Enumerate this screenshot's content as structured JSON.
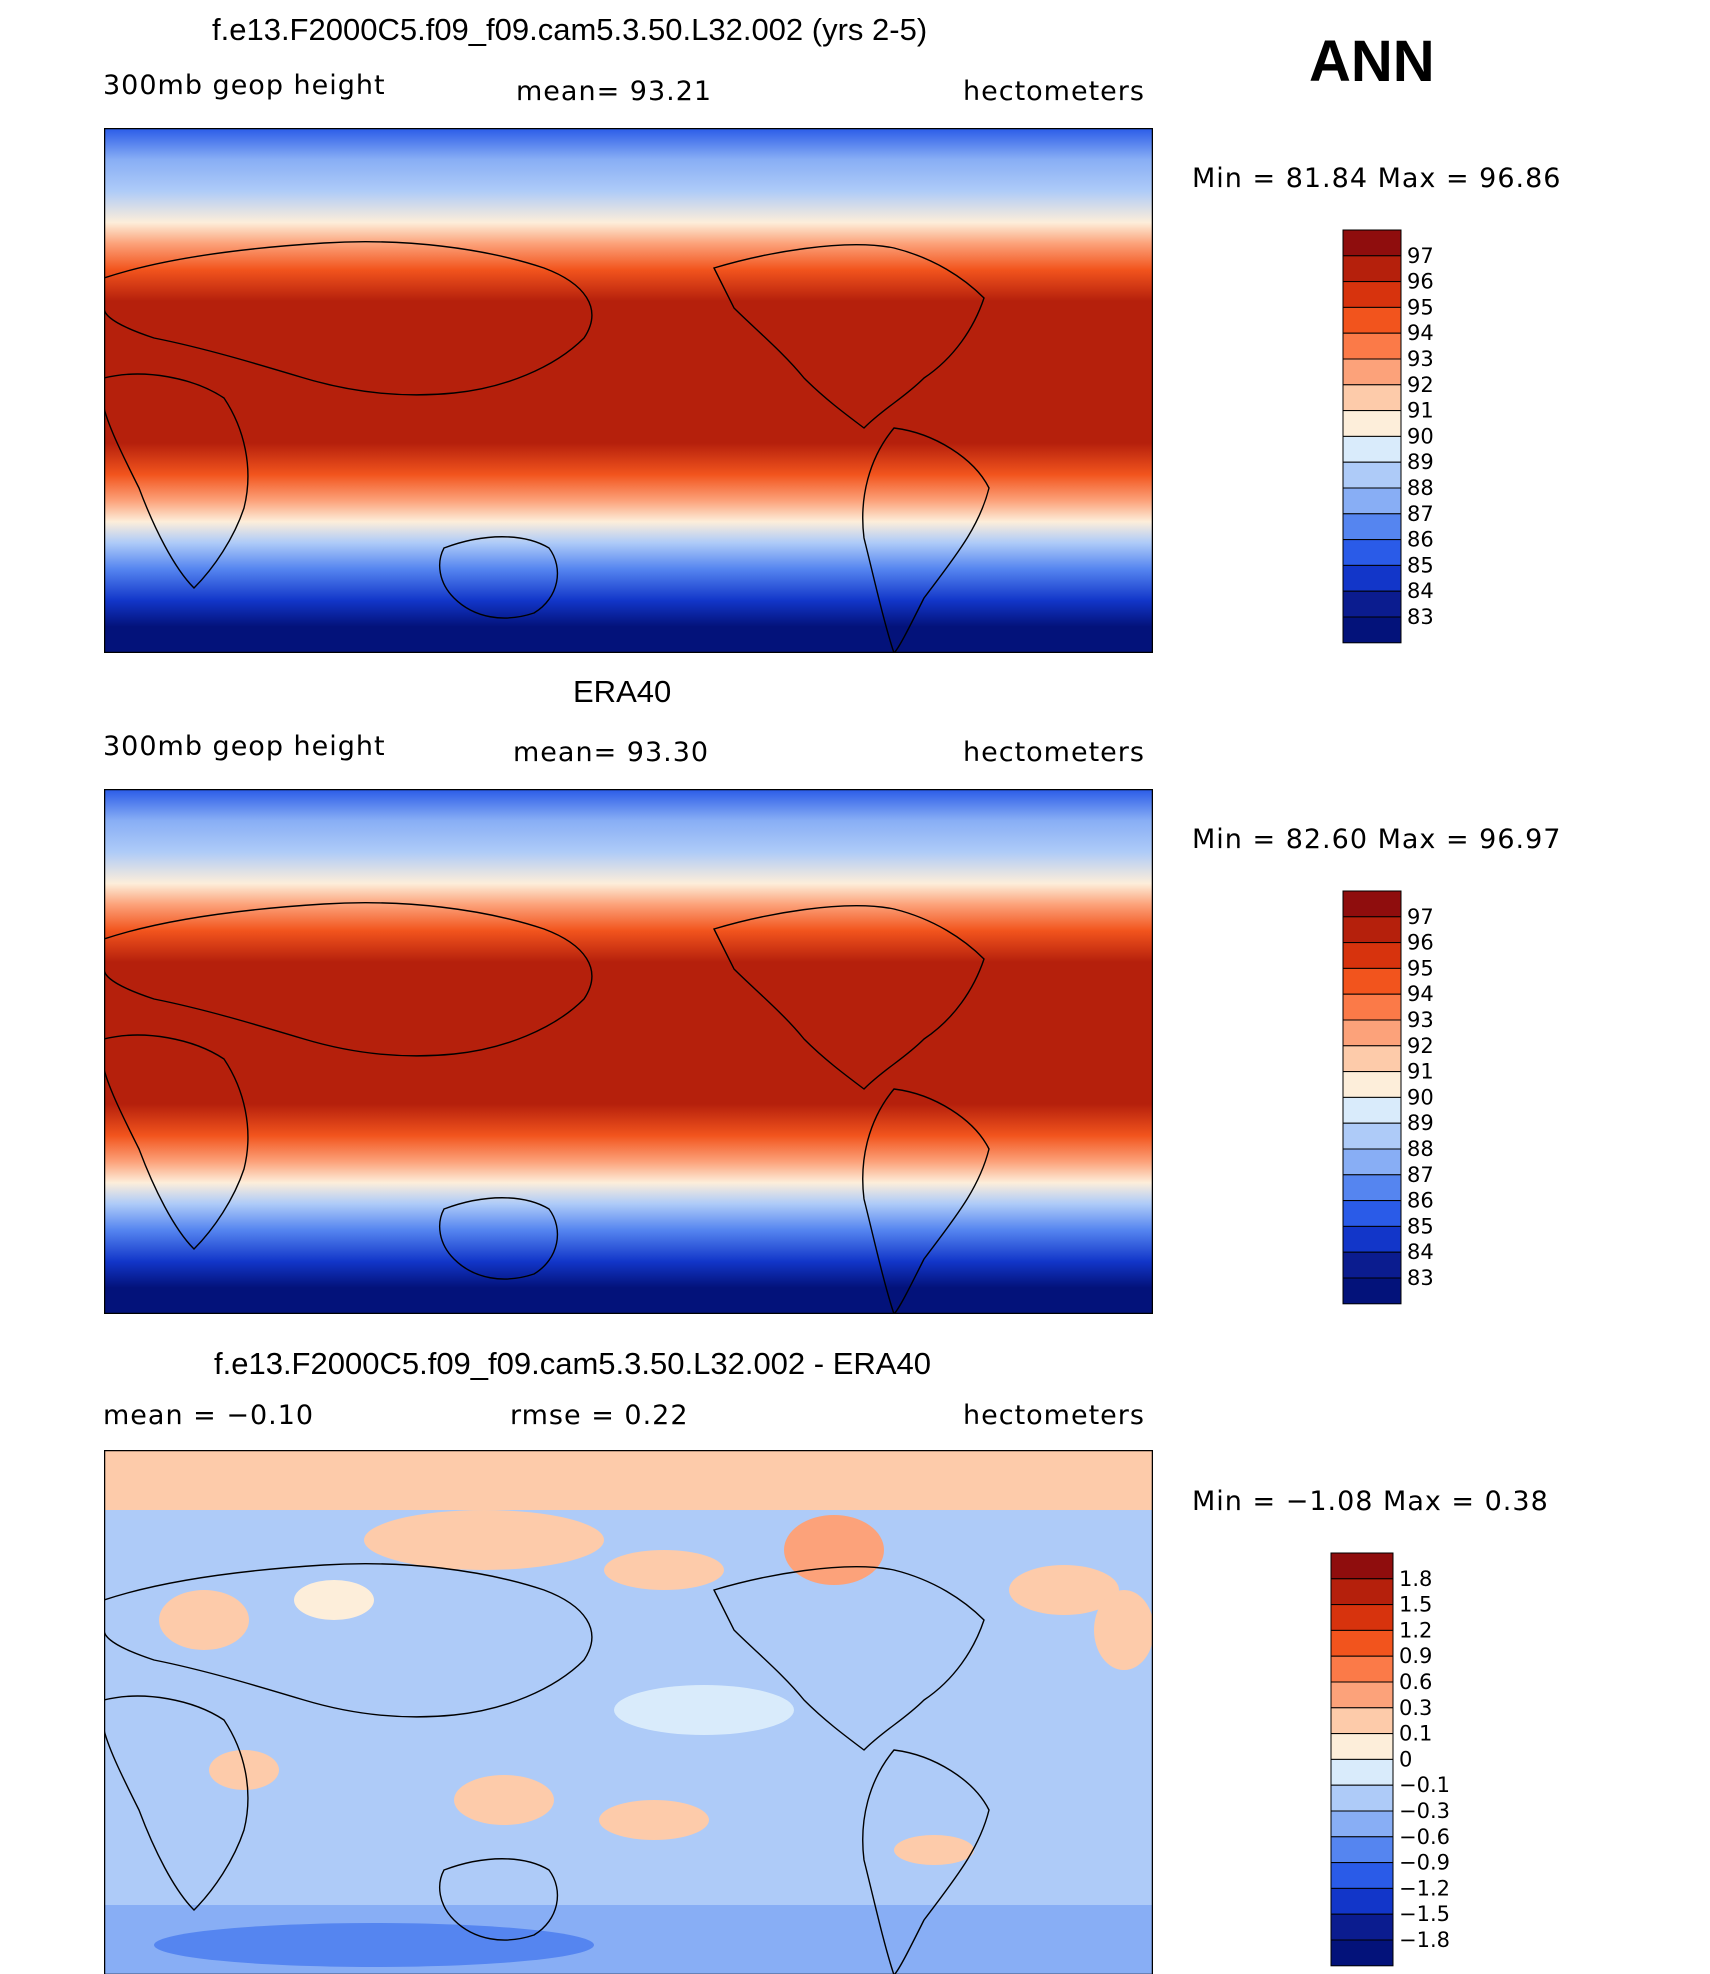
{
  "season": "ANN",
  "panels": [
    {
      "title": "f.e13.F2000C5.f09_f09.cam5.3.50.L32.002 (yrs 2-5)",
      "left_label": "300mb  geop  height",
      "center_label": "mean=   93.21",
      "units": "hectometers",
      "minmax": "Min  =    81.84  Max  =    96.86",
      "colorbar": {
        "labels": [
          "97",
          "96",
          "95",
          "94",
          "93",
          "92",
          "91",
          "90",
          "89",
          "88",
          "87",
          "86",
          "85",
          "84",
          "83"
        ],
        "colors": [
          "#8f0d0d",
          "#b5200c",
          "#d7330d",
          "#f2541d",
          "#fb7a48",
          "#fca27a",
          "#fdcbaa",
          "#fdeeda",
          "#d9ebfb",
          "#aecbf8",
          "#88aef5",
          "#5585f0",
          "#2a5be8",
          "#1236c9",
          "#0b1c8f",
          "#03127a"
        ]
      }
    },
    {
      "title": "ERA40",
      "left_label": "300mb  geop  height",
      "center_label": "mean=   93.30",
      "units": "hectometers",
      "minmax": "Min  =    82.60  Max  =    96.97",
      "colorbar": {
        "labels": [
          "97",
          "96",
          "95",
          "94",
          "93",
          "92",
          "91",
          "90",
          "89",
          "88",
          "87",
          "86",
          "85",
          "84",
          "83"
        ],
        "colors": [
          "#8f0d0d",
          "#b5200c",
          "#d7330d",
          "#f2541d",
          "#fb7a48",
          "#fca27a",
          "#fdcbaa",
          "#fdeeda",
          "#d9ebfb",
          "#aecbf8",
          "#88aef5",
          "#5585f0",
          "#2a5be8",
          "#1236c9",
          "#0b1c8f",
          "#03127a"
        ]
      }
    },
    {
      "title": "f.e13.F2000C5.f09_f09.cam5.3.50.L32.002 - ERA40",
      "left_label": "mean  =    −0.10",
      "center_label": "rmse  =     0.22",
      "units": "hectometers",
      "minmax": "Min  =    −1.08  Max  =      0.38",
      "colorbar": {
        "labels": [
          "1.8",
          "1.5",
          "1.2",
          "0.9",
          "0.6",
          "0.3",
          "0.1",
          "0",
          "−0.1",
          "−0.3",
          "−0.6",
          "−0.9",
          "−1.2",
          "−1.5",
          "−1.8"
        ],
        "colors": [
          "#8f0d0d",
          "#b5200c",
          "#d7330d",
          "#f2541d",
          "#fb7a48",
          "#fca27a",
          "#fdcbaa",
          "#fdeeda",
          "#d9ebfb",
          "#aecbf8",
          "#88aef5",
          "#5585f0",
          "#2a5be8",
          "#1236c9",
          "#0b1c8f",
          "#03127a"
        ]
      }
    }
  ]
}
